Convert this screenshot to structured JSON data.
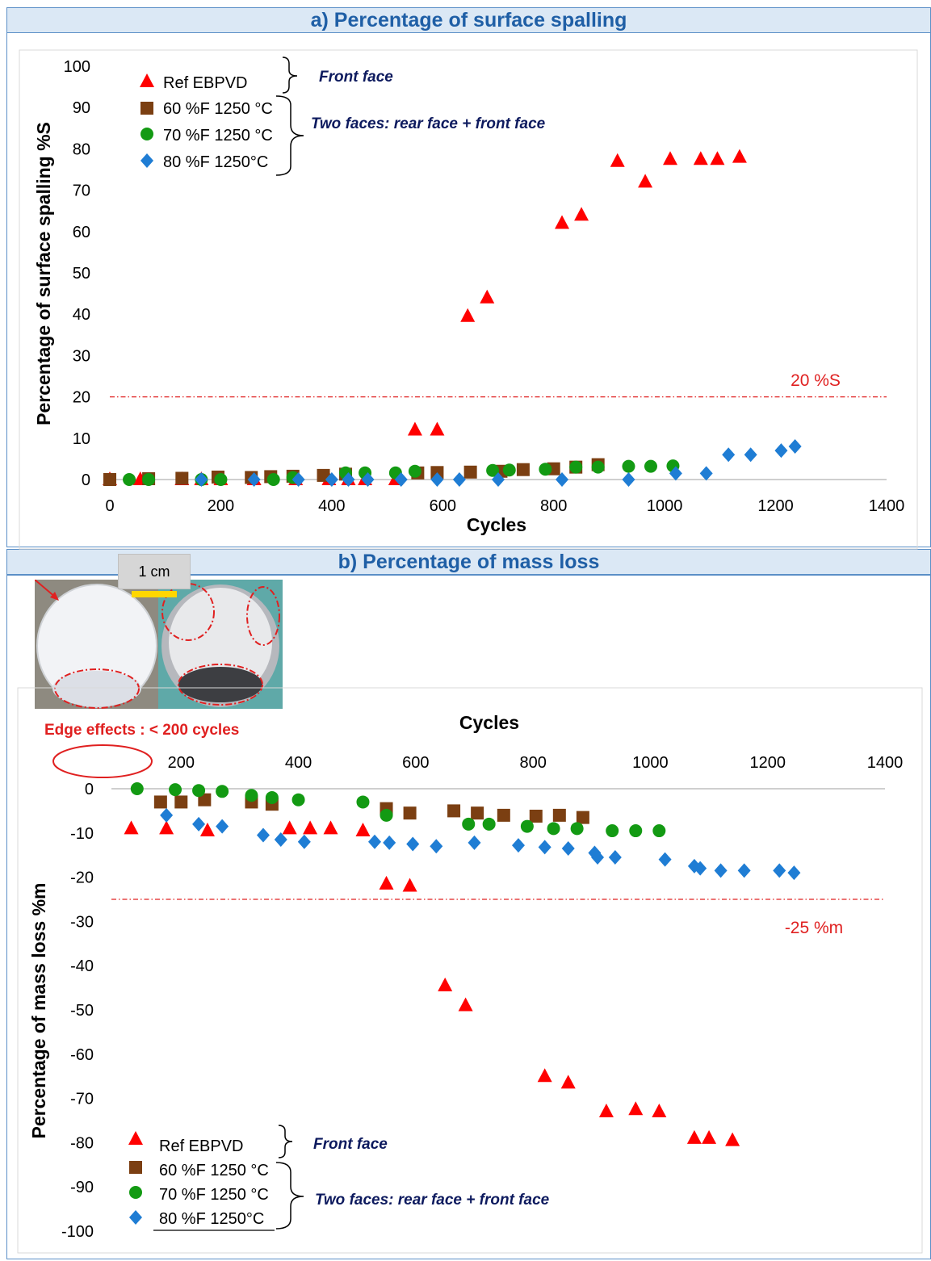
{
  "panels": {
    "a": {
      "header": "a)  Percentage of surface spalling"
    },
    "b": {
      "header": "b)  Percentage of mass loss"
    }
  },
  "photo": {
    "scale_label": "1 cm",
    "note": "Edge effects : < 200 cycles"
  },
  "colors": {
    "ref": "#ff0000",
    "f60": "#7b3f12",
    "f70": "#139a13",
    "f80": "#1f7dd4",
    "threshold": "#e02020",
    "annotation": "#0d1a5e",
    "axis": "#000000",
    "header_text": "#1f5fa6"
  },
  "chart_data": [
    {
      "type": "scatter",
      "title": "",
      "xlabel": "Cycles",
      "ylabel": "Percentage of surface spalling %S",
      "xlim": [
        0,
        1400
      ],
      "ylim": [
        0,
        100
      ],
      "x_ticks": [
        0,
        200,
        400,
        600,
        800,
        1000,
        1200,
        1400
      ],
      "y_ticks": [
        0,
        10,
        20,
        30,
        40,
        50,
        60,
        70,
        80,
        90,
        100
      ],
      "grid": false,
      "legend_position": "top-left",
      "threshold": {
        "y": 20,
        "label": "20 %S"
      },
      "annotations": {
        "front": "Front face",
        "two": "Two faces: rear face + front face"
      },
      "series": [
        {
          "name": "Ref EBPVD",
          "marker": "triangle",
          "color": "#ff0000",
          "x": [
            0,
            55,
            130,
            165,
            200,
            260,
            335,
            395,
            430,
            460,
            515,
            550,
            590,
            645,
            680,
            815,
            850,
            915,
            965,
            1010,
            1065,
            1095,
            1135
          ],
          "y": [
            0,
            0,
            0,
            0,
            0,
            0,
            0,
            0,
            0,
            0,
            0,
            12,
            12,
            39.5,
            44,
            62,
            64,
            77,
            72,
            77.5,
            77.5,
            77.5,
            78
          ]
        },
        {
          "name": "60 %F 1250 °C",
          "marker": "square",
          "color": "#7b3f12",
          "x": [
            0,
            70,
            130,
            195,
            255,
            290,
            330,
            385,
            425,
            555,
            590,
            650,
            705,
            745,
            800,
            840,
            880
          ],
          "y": [
            0,
            0.2,
            0.3,
            0.6,
            0.5,
            0.7,
            0.8,
            1,
            1.3,
            1.6,
            1.7,
            1.8,
            2,
            2.4,
            2.6,
            3,
            3.6
          ]
        },
        {
          "name": "70 %F 1250 °C",
          "marker": "circle",
          "color": "#139a13",
          "x": [
            35,
            70,
            165,
            200,
            295,
            330,
            425,
            460,
            515,
            550,
            690,
            720,
            785,
            840,
            880,
            935,
            975,
            1015
          ],
          "y": [
            0,
            0,
            0,
            0,
            0,
            0.5,
            1.6,
            1.6,
            1.6,
            2,
            2.2,
            2.3,
            2.5,
            3,
            3,
            3.2,
            3.2,
            3.3
          ]
        },
        {
          "name": "80 %F 1250°C",
          "marker": "diamond",
          "color": "#1f7dd4",
          "x": [
            165,
            260,
            340,
            400,
            430,
            465,
            525,
            590,
            630,
            700,
            815,
            935,
            1020,
            1075,
            1115,
            1155,
            1210,
            1235
          ],
          "y": [
            0,
            0,
            0,
            0,
            0,
            0,
            0,
            0,
            0,
            0,
            0,
            0,
            1.5,
            1.5,
            6,
            6,
            7,
            8
          ]
        }
      ]
    },
    {
      "type": "scatter",
      "title": "",
      "xlabel": "Cycles",
      "ylabel": "Percentage of mass loss %m",
      "xlim": [
        0,
        1400
      ],
      "ylim": [
        -100,
        0
      ],
      "x_axis_position": "top",
      "x_ticks": [
        200,
        400,
        600,
        800,
        1000,
        1200,
        1400
      ],
      "y_ticks": [
        0,
        -10,
        -20,
        -30,
        -40,
        -50,
        -60,
        -70,
        -80,
        -90,
        -100
      ],
      "grid": false,
      "legend_position": "bottom-left",
      "threshold": {
        "y": -25,
        "label": "-25 %m"
      },
      "annotations": {
        "front": "Front face",
        "two": "Two faces: rear face + front face"
      },
      "series": [
        {
          "name": "Ref EBPVD",
          "marker": "triangle",
          "color": "#ff0000",
          "x": [
            115,
            175,
            245,
            385,
            420,
            455,
            510,
            550,
            590,
            650,
            685,
            820,
            860,
            925,
            975,
            1015,
            1075,
            1100,
            1140
          ],
          "y": [
            -9,
            -9,
            -9.5,
            -9,
            -9,
            -9,
            -9.5,
            -21.5,
            -22,
            -44.5,
            -49,
            -65,
            -66.5,
            -73,
            -72.5,
            -73,
            -79,
            -79,
            -79.5
          ]
        },
        {
          "name": "60 %F 1250 °C",
          "marker": "square",
          "color": "#7b3f12",
          "x": [
            165,
            200,
            240,
            320,
            355,
            550,
            590,
            665,
            705,
            750,
            805,
            845,
            885
          ],
          "y": [
            -3,
            -3,
            -2.5,
            -3,
            -3.5,
            -4.5,
            -5.5,
            -5,
            -5.5,
            -6,
            -6.2,
            -6,
            -6.5
          ]
        },
        {
          "name": "70 %F 1250 °C",
          "marker": "circle",
          "color": "#139a13",
          "x": [
            125,
            190,
            230,
            270,
            320,
            355,
            400,
            510,
            550,
            690,
            725,
            790,
            835,
            875,
            935,
            975,
            1015
          ],
          "y": [
            0,
            -0.2,
            -0.4,
            -0.6,
            -1.5,
            -2,
            -2.5,
            -3,
            -6,
            -8,
            -8,
            -8.5,
            -9,
            -9,
            -9.5,
            -9.5,
            -9.5
          ]
        },
        {
          "name": "80 %F 1250°C",
          "marker": "diamond",
          "color": "#1f7dd4",
          "x": [
            175,
            230,
            270,
            340,
            370,
            410,
            530,
            555,
            595,
            635,
            700,
            775,
            820,
            860,
            905,
            910,
            940,
            1025,
            1075,
            1085,
            1120,
            1160,
            1220,
            1245
          ],
          "y": [
            -6,
            -8,
            -8.5,
            -10.5,
            -11.5,
            -12,
            -12,
            -12.2,
            -12.5,
            -13,
            -12.2,
            -12.8,
            -13.2,
            -13.5,
            -14.5,
            -15.5,
            -15.5,
            -16,
            -17.5,
            -18,
            -18.5,
            -18.5,
            -18.5,
            -19
          ]
        }
      ]
    }
  ]
}
